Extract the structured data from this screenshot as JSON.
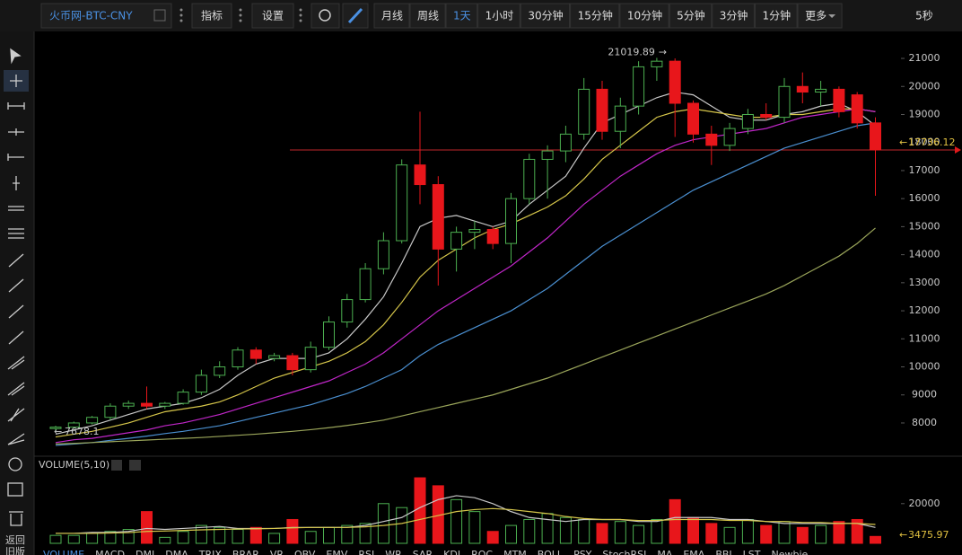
{
  "toolbar": {
    "symbol": "火币网-BTC-CNY",
    "indicator": "指标",
    "settings": "设置",
    "periods": [
      "月线",
      "周线",
      "1天",
      "1小时",
      "30分钟",
      "15分钟",
      "10分钟",
      "5分钟",
      "3分钟",
      "1分钟"
    ],
    "active_period": 2,
    "more": "更多",
    "refresh": "5秒"
  },
  "sidebar": {
    "back": [
      "返回",
      "旧版"
    ]
  },
  "chart_data": {
    "type": "candlestick",
    "open": [
      7800,
      7850,
      8000,
      8200,
      8600,
      8700,
      8600,
      8700,
      9100,
      9700,
      10000,
      10600,
      10300,
      10400,
      9900,
      10700,
      11600,
      12400,
      13500,
      14500,
      17200,
      16500,
      14200,
      14800,
      14900,
      14400,
      16000,
      17400,
      17700,
      18300,
      19900,
      18400,
      19300,
      20700,
      20900,
      19400,
      18300,
      17900,
      18500,
      19000,
      18900,
      20000,
      19800,
      19900,
      19700,
      18700
    ],
    "high": [
      7900,
      8050,
      8250,
      8700,
      8800,
      9300,
      8750,
      9200,
      9900,
      10200,
      10700,
      10700,
      10500,
      10500,
      10900,
      11800,
      12600,
      13700,
      14800,
      17400,
      19100,
      16800,
      15000,
      15200,
      15000,
      16200,
      17600,
      17900,
      18600,
      20300,
      20200,
      19600,
      20900,
      21019.89,
      21000,
      19500,
      18600,
      18700,
      19200,
      19400,
      20300,
      20500,
      20200,
      20000,
      19800,
      18900
    ],
    "low": [
      7678.1,
      7800,
      7950,
      8100,
      8500,
      8500,
      8500,
      8650,
      9000,
      9600,
      9900,
      10100,
      10200,
      9700,
      9800,
      10600,
      11400,
      12300,
      13300,
      14400,
      15800,
      12900,
      13400,
      14200,
      14200,
      13700,
      15800,
      16000,
      17300,
      18100,
      18100,
      17800,
      19000,
      20200,
      18200,
      18000,
      17200,
      17700,
      18300,
      18800,
      18700,
      19400,
      19300,
      18900,
      18500,
      16100
    ],
    "close": [
      7850,
      8000,
      8200,
      8600,
      8700,
      8600,
      8700,
      9100,
      9700,
      10000,
      10600,
      10300,
      10400,
      9900,
      10700,
      11600,
      12400,
      13500,
      14500,
      17200,
      16500,
      14200,
      14800,
      14900,
      14400,
      16000,
      17400,
      17700,
      18300,
      19900,
      18400,
      19300,
      20700,
      20900,
      19400,
      18300,
      17900,
      18500,
      19000,
      18900,
      20000,
      19800,
      19900,
      19100,
      18700,
      17736.12
    ],
    "up_color": "#4caf50",
    "down_color": "#e8161b",
    "last_line_color": "#c0282d",
    "ylim": [
      6910,
      21930
    ],
    "yticks": [
      8000,
      9000,
      10000,
      11000,
      12000,
      13000,
      14000,
      15000,
      16000,
      17000,
      18000,
      19000,
      20000,
      21000
    ],
    "ma": [
      {
        "color": "#c8c8c8",
        "values": [
          7600,
          7750,
          7900,
          8100,
          8300,
          8500,
          8600,
          8700,
          8900,
          9200,
          9700,
          10100,
          10300,
          10300,
          10300,
          10500,
          11000,
          11700,
          12500,
          13700,
          15000,
          15300,
          15400,
          15200,
          15000,
          15200,
          15800,
          16300,
          16800,
          17800,
          18700,
          19000,
          19300,
          19600,
          19800,
          19700,
          19300,
          18900,
          18800,
          18800,
          19000,
          19100,
          19300,
          19400,
          19100,
          18600
        ]
      },
      {
        "color": "#d6c64a",
        "values": [
          7500,
          7600,
          7700,
          7850,
          8000,
          8200,
          8400,
          8500,
          8600,
          8750,
          9000,
          9300,
          9600,
          9800,
          10000,
          10200,
          10500,
          10900,
          11500,
          12300,
          13200,
          13800,
          14200,
          14600,
          14900,
          15100,
          15400,
          15700,
          16100,
          16700,
          17400,
          17900,
          18400,
          18900,
          19100,
          19200,
          19100,
          19000,
          18900,
          18900,
          19000,
          19000,
          19100,
          19200,
          19200,
          19100
        ]
      },
      {
        "color": "#c026c8",
        "values": [
          7300,
          7400,
          7450,
          7550,
          7650,
          7750,
          7900,
          8000,
          8150,
          8300,
          8500,
          8700,
          8900,
          9100,
          9300,
          9500,
          9800,
          10100,
          10500,
          11000,
          11500,
          12000,
          12400,
          12800,
          13200,
          13600,
          14100,
          14600,
          15200,
          15800,
          16300,
          16800,
          17200,
          17600,
          17900,
          18100,
          18200,
          18300,
          18400,
          18500,
          18700,
          18900,
          19000,
          19100,
          19200,
          19100
        ]
      },
      {
        "color": "#4a8fd0",
        "values": [
          7200,
          7250,
          7300,
          7380,
          7450,
          7530,
          7620,
          7700,
          7800,
          7900,
          8050,
          8200,
          8350,
          8500,
          8650,
          8850,
          9050,
          9300,
          9600,
          9900,
          10400,
          10800,
          11100,
          11400,
          11700,
          12000,
          12400,
          12800,
          13300,
          13800,
          14300,
          14700,
          15100,
          15500,
          15900,
          16300,
          16600,
          16900,
          17200,
          17500,
          17800,
          18000,
          18200,
          18400,
          18600,
          18700
        ]
      },
      {
        "color": "#9aa55a",
        "values": [
          7250,
          7270,
          7300,
          7330,
          7360,
          7390,
          7420,
          7450,
          7480,
          7520,
          7560,
          7600,
          7650,
          7700,
          7760,
          7830,
          7910,
          8000,
          8100,
          8250,
          8400,
          8550,
          8700,
          8850,
          9000,
          9200,
          9400,
          9600,
          9850,
          10100,
          10350,
          10600,
          10850,
          11100,
          11350,
          11600,
          11850,
          12100,
          12350,
          12600,
          12900,
          13250,
          13600,
          13950,
          14400,
          14950
        ]
      }
    ],
    "volume": {
      "title": "VOLUME(5,10)",
      "ylim": [
        0,
        38000
      ],
      "yticks": [
        20000
      ],
      "values": [
        4000,
        4000,
        5000,
        6000,
        7000,
        16000,
        3000,
        6000,
        9000,
        8000,
        7000,
        8000,
        5000,
        12000,
        6000,
        8000,
        9000,
        10000,
        20000,
        18000,
        33000,
        29000,
        22000,
        16000,
        6000,
        9000,
        12000,
        15000,
        13000,
        12000,
        10000,
        11000,
        9000,
        12000,
        22000,
        13000,
        10000,
        8000,
        12000,
        9000,
        11000,
        8000,
        9000,
        11000,
        12000,
        3475.97
      ],
      "ma": [
        {
          "color": "#c8c8c8",
          "values": [
            5000,
            5000,
            5500,
            5500,
            6000,
            7500,
            7000,
            7500,
            8000,
            8500,
            7500,
            7500,
            7500,
            8000,
            8000,
            8000,
            8000,
            9000,
            11000,
            13000,
            18000,
            22000,
            24000,
            23000,
            20000,
            16000,
            13000,
            12000,
            11000,
            12000,
            12000,
            12000,
            11000,
            11000,
            13000,
            13000,
            13000,
            12000,
            12000,
            11000,
            10000,
            10000,
            10000,
            10000,
            10000,
            8000
          ]
        },
        {
          "color": "#d6c64a",
          "values": [
            5000,
            5000,
            5000,
            5200,
            5400,
            6000,
            6200,
            6500,
            6800,
            7000,
            7200,
            7300,
            7500,
            7800,
            8000,
            8000,
            8000,
            8300,
            9000,
            10000,
            12000,
            14000,
            16000,
            17000,
            17500,
            17000,
            16000,
            15000,
            13500,
            12500,
            12000,
            12000,
            11500,
            11500,
            12000,
            12000,
            12000,
            11500,
            11500,
            11000,
            11000,
            10500,
            10500,
            10000,
            10000,
            9500
          ]
        }
      ]
    }
  },
  "indicator_tabs": [
    "VOLUME",
    "MACD",
    "DMI",
    "DMA",
    "TRIX",
    "BRAR",
    "VR",
    "OBV",
    "EMV",
    "RSI",
    "WR",
    "SAR",
    "KDJ",
    "ROC",
    "MTM",
    "BOLL",
    "PSY",
    "StochRSI",
    "MA",
    "EMA",
    "BBI",
    "LST",
    "Newbie"
  ]
}
